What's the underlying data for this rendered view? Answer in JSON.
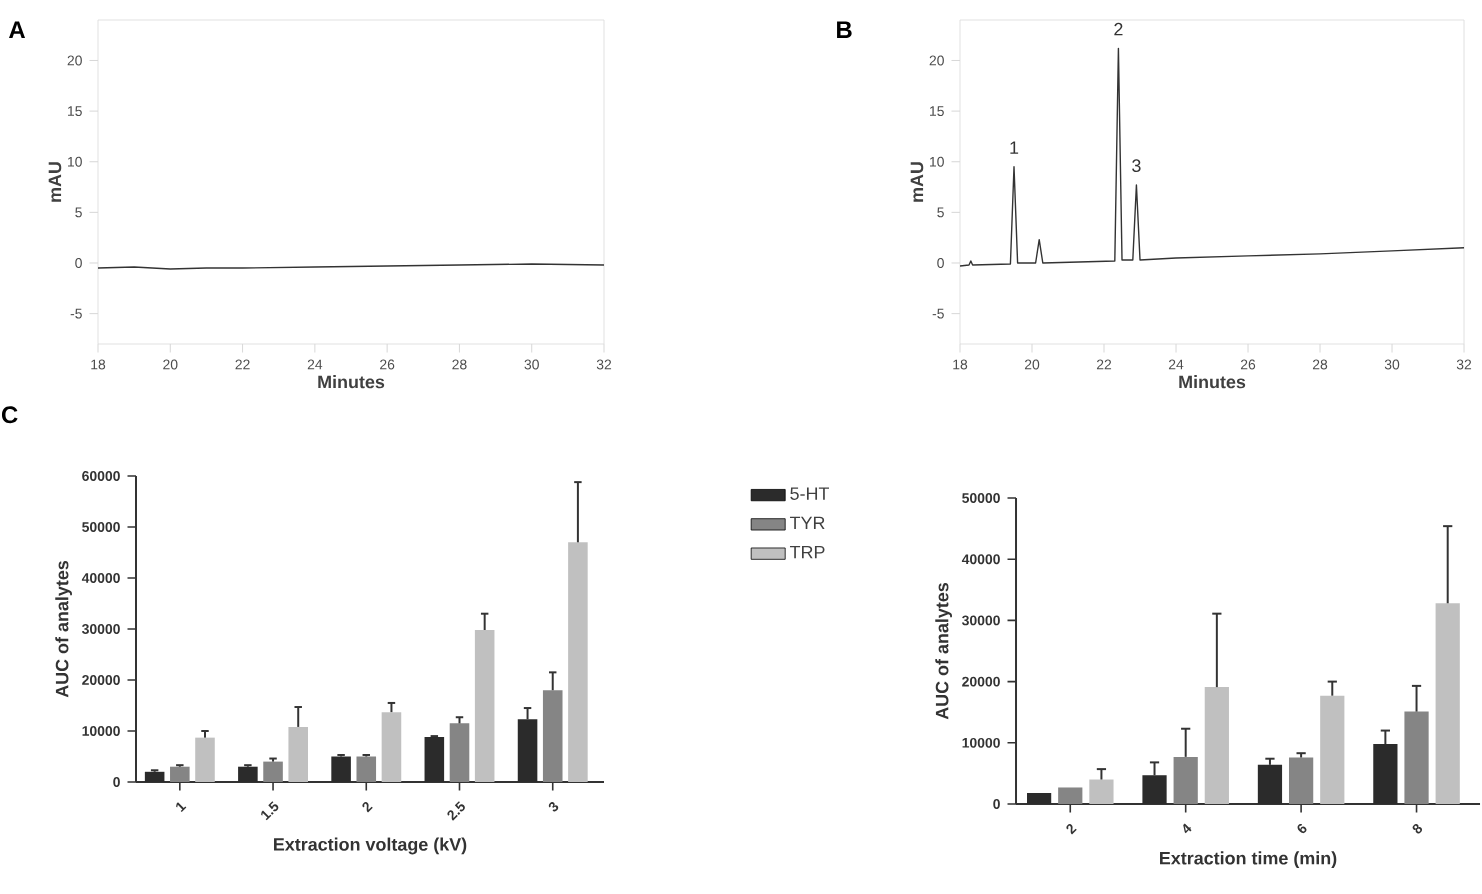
{
  "chart_data": [
    {
      "type": "line",
      "title": "A",
      "xlabel": "Minutes",
      "ylabel": "mAU",
      "xlim": [
        18,
        32
      ],
      "ylim": [
        -8,
        24
      ],
      "xticks": [
        18,
        20,
        22,
        24,
        26,
        28,
        30,
        32
      ],
      "yticks": [
        -5,
        0,
        5,
        10,
        15,
        20
      ],
      "series": [
        {
          "color": "#333333",
          "x": [
            18,
            19,
            20,
            21,
            22,
            24,
            26,
            28,
            30,
            32
          ],
          "values": [
            -0.5,
            -0.4,
            -0.6,
            -0.5,
            -0.5,
            -0.4,
            -0.3,
            -0.2,
            -0.1,
            -0.2
          ]
        }
      ]
    },
    {
      "type": "line",
      "title": "B",
      "xlabel": "Minutes",
      "ylabel": "mAU",
      "xlim": [
        18,
        32
      ],
      "ylim": [
        -8,
        24
      ],
      "xticks": [
        18,
        20,
        22,
        24,
        26,
        28,
        30,
        32
      ],
      "yticks": [
        -5,
        0,
        5,
        10,
        15,
        20
      ],
      "series": [
        {
          "color": "#333333",
          "x": [
            18,
            18.25,
            18.3,
            18.35,
            19.4,
            19.5,
            19.6,
            20.1,
            20.2,
            20.3,
            22.3,
            22.4,
            22.5,
            22.8,
            22.9,
            23.0,
            24,
            26,
            28,
            30,
            32
          ],
          "values": [
            -0.3,
            -0.2,
            0.2,
            -0.2,
            -0.1,
            9.5,
            0,
            0,
            2.3,
            0,
            0.2,
            21.2,
            0.3,
            0.3,
            7.7,
            0.3,
            0.5,
            0.7,
            0.9,
            1.2,
            1.5
          ]
        }
      ],
      "annotations": [
        {
          "text": "1",
          "x": 19.5,
          "y": 9.5
        },
        {
          "text": "2",
          "x": 22.4,
          "y": 21.2
        },
        {
          "text": "3",
          "x": 22.9,
          "y": 7.7
        }
      ]
    },
    {
      "type": "bar",
      "title": "C",
      "xlabel": "Extraction voltage (kV)",
      "ylabel": "AUC of analytes",
      "categories": [
        "1",
        "1.5",
        "2",
        "2.5",
        "3"
      ],
      "ylim": [
        0,
        60000
      ],
      "yticks": [
        0,
        10000,
        20000,
        30000,
        40000,
        50000,
        60000
      ],
      "legend": "right",
      "series": [
        {
          "name": "5-HT",
          "color": "#2b2b2b",
          "values": [
            2000,
            3000,
            5000,
            8800,
            12300
          ],
          "errors": [
            [
              2000,
              2300
            ],
            [
              3000,
              3300
            ],
            [
              5000,
              5300
            ],
            [
              8800,
              9000
            ],
            [
              12300,
              14500
            ]
          ]
        },
        {
          "name": "TYR",
          "color": "#858585",
          "values": [
            3000,
            4000,
            5000,
            11500,
            18000
          ],
          "errors": [
            [
              3000,
              3300
            ],
            [
              4000,
              4600
            ],
            [
              5000,
              5300
            ],
            [
              11500,
              12700
            ],
            [
              18000,
              21500
            ]
          ]
        },
        {
          "name": "TRP",
          "color": "#c0c0c0",
          "values": [
            8700,
            10800,
            13700,
            29800,
            47000
          ],
          "errors": [
            [
              8700,
              10000
            ],
            [
              10800,
              14700
            ],
            [
              13700,
              15500
            ],
            [
              29800,
              33000
            ],
            [
              47000,
              58800
            ]
          ]
        }
      ]
    },
    {
      "type": "bar",
      "xlabel": "Extraction time (min)",
      "ylabel": "AUC of analytes",
      "categories": [
        "2",
        "4",
        "6",
        "8"
      ],
      "ylim": [
        0,
        50000
      ],
      "yticks": [
        0,
        10000,
        20000,
        30000,
        40000,
        50000
      ],
      "series": [
        {
          "color": "#2b2b2b",
          "values": [
            1800,
            4700,
            6400,
            9800
          ],
          "errors": [
            null,
            [
              4700,
              6800
            ],
            [
              6400,
              7400
            ],
            [
              9800,
              12000
            ]
          ]
        },
        {
          "color": "#858585",
          "values": [
            2700,
            7700,
            7600,
            15100
          ],
          "errors": [
            null,
            [
              7700,
              12300
            ],
            [
              7600,
              8300
            ],
            [
              15100,
              19300
            ]
          ]
        },
        {
          "color": "#c0c0c0",
          "values": [
            4000,
            19100,
            17700,
            32800
          ],
          "errors": [
            [
              4000,
              5700
            ],
            [
              19100,
              31100
            ],
            [
              17700,
              20000
            ],
            [
              32800,
              45400
            ]
          ]
        }
      ]
    }
  ]
}
